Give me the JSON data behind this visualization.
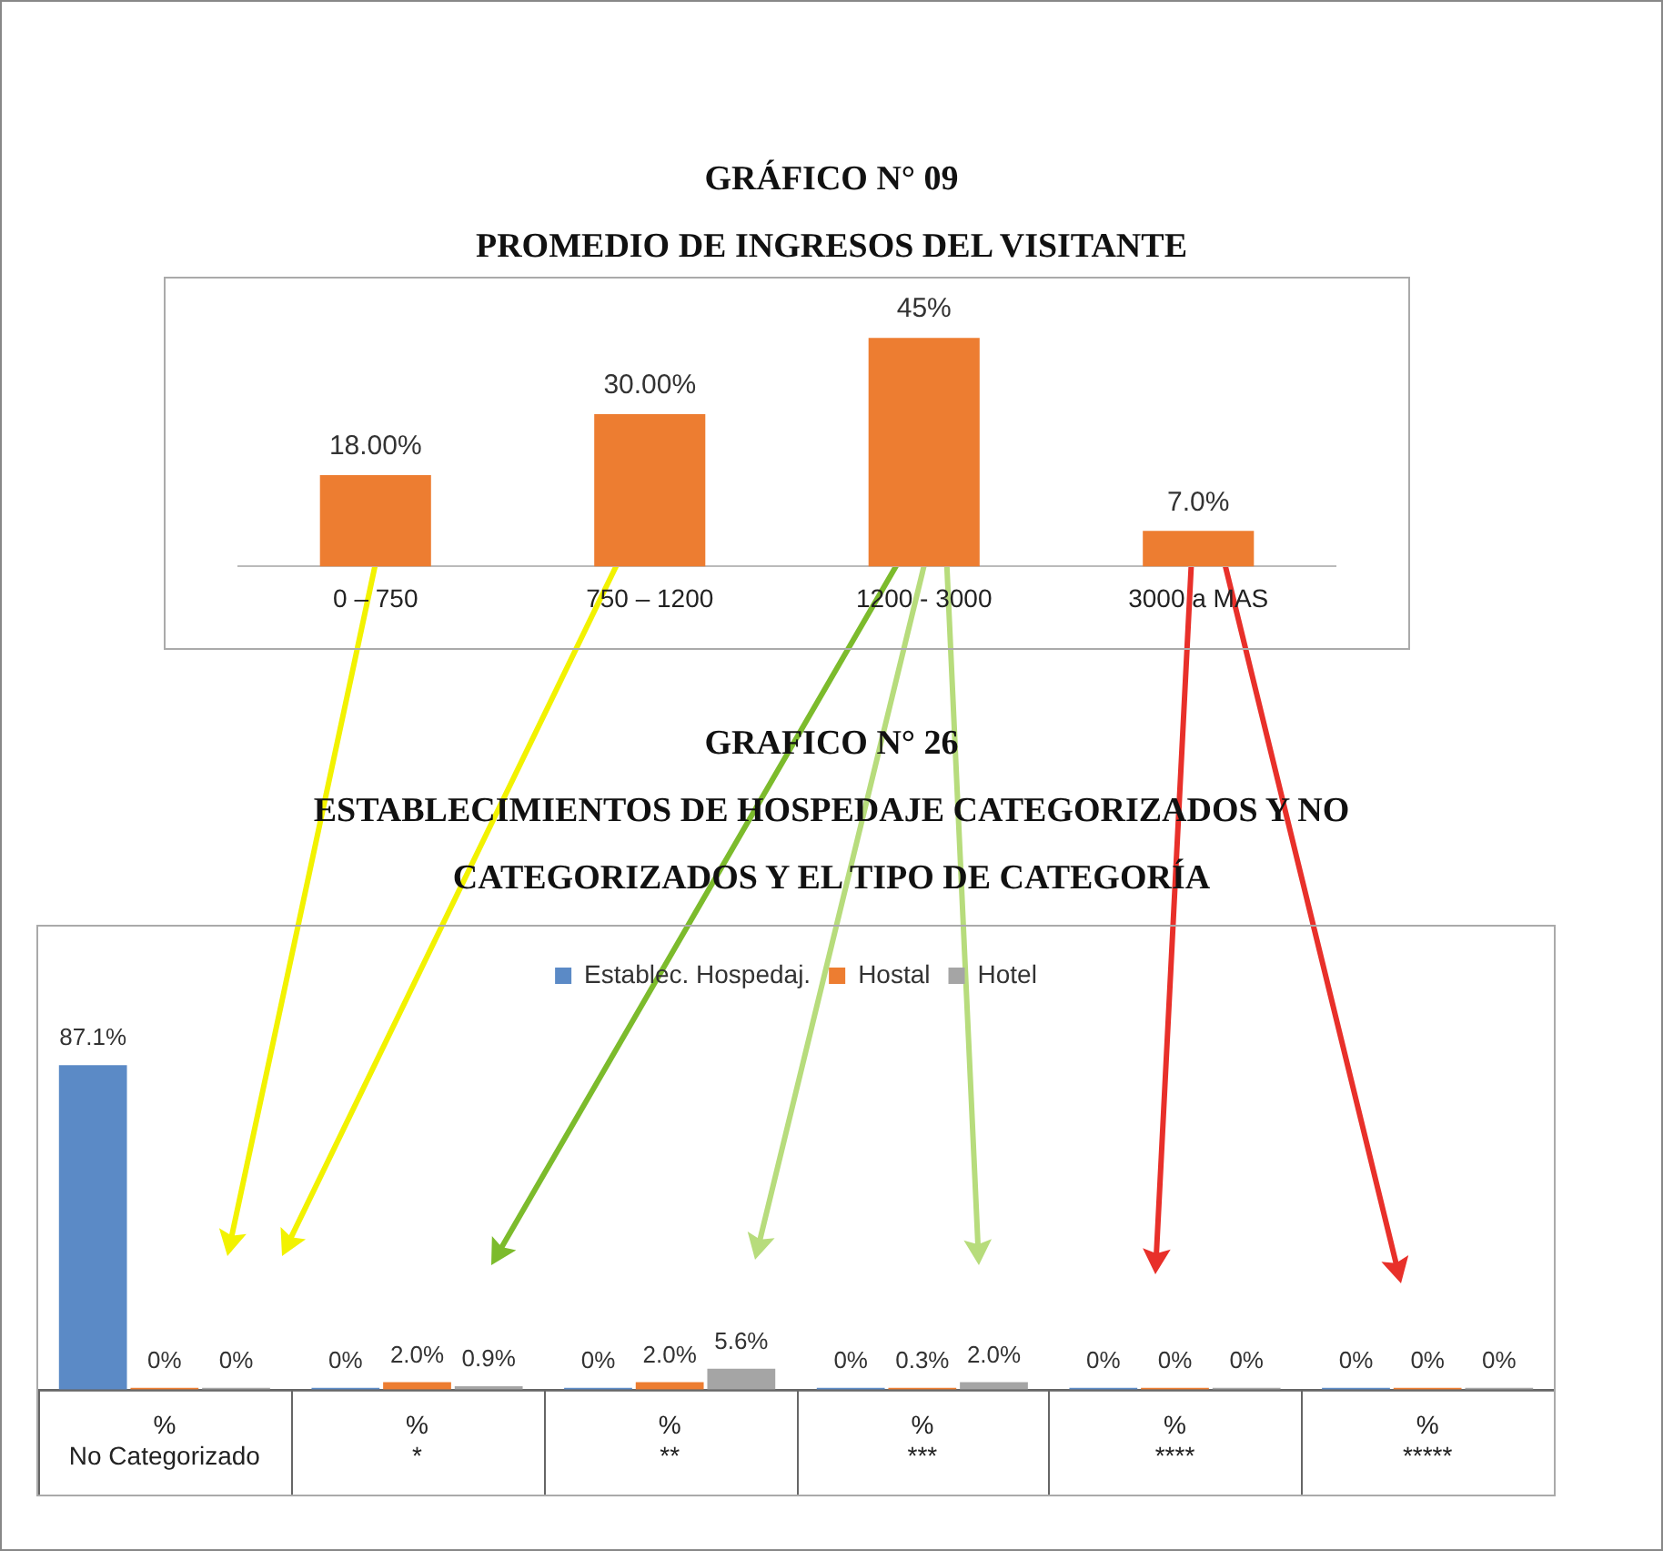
{
  "chart_data": [
    {
      "type": "bar",
      "title": "GRÁFICO N° 09",
      "subtitle": "PROMEDIO DE INGRESOS DEL VISITANTE",
      "categories": [
        "0 – 750",
        "750 – 1200",
        "1200 - 3000",
        "3000 a MAS"
      ],
      "values": [
        18,
        30,
        45,
        7
      ],
      "value_labels": [
        "18.00%",
        "30.00%",
        "45%",
        "7.0%"
      ],
      "color": "#ed7d31",
      "legend": false,
      "grid": false
    },
    {
      "type": "bar",
      "title": "GRAFICO N° 26",
      "subtitle": "ESTABLECIMIENTOS  DE HOSPEDAJE CATEGORIZADOS Y NO CATEGORIZADOS Y EL TIPO DE CATEGORÍA",
      "categories": [
        "%\nNo Categorizado",
        "%\n*",
        "%\n**",
        "%\n***",
        "%\n****",
        "%\n*****"
      ],
      "series": [
        {
          "name": "Establec. Hospedaj.",
          "color": "#5b8ac6",
          "values": [
            87.1,
            0,
            0,
            0,
            0,
            0
          ],
          "value_labels": [
            "87.1%",
            "0%",
            "0%",
            "0%",
            "0%",
            "0%"
          ]
        },
        {
          "name": "Hostal",
          "color": "#ed7d31",
          "values": [
            0,
            2.0,
            2.0,
            0.3,
            0,
            0
          ],
          "value_labels": [
            "0%",
            "2.0%",
            "2.0%",
            "0.3%",
            "0%",
            "0%"
          ]
        },
        {
          "name": "Hotel",
          "color": "#a5a5a5",
          "values": [
            0,
            0.9,
            5.6,
            2.0,
            0,
            0
          ],
          "value_labels": [
            "0%",
            "0.9%",
            "5.6%",
            "2.0%",
            "0%",
            "0%"
          ]
        }
      ],
      "legend": "top",
      "grid": false
    }
  ]
}
